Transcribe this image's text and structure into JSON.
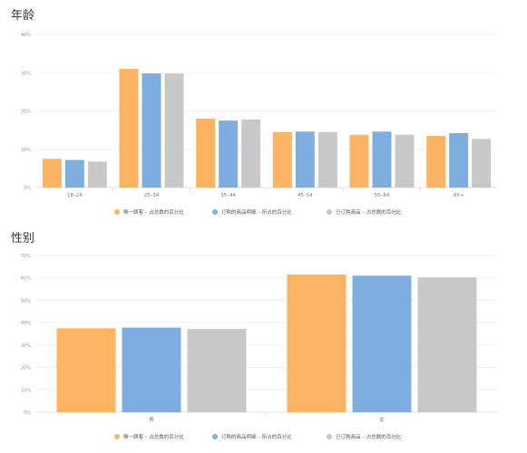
{
  "sections": {
    "age_title": "年龄",
    "gender_title": "性别"
  },
  "legend": [
    "唯一顾客 – 占总数的百分比",
    "订购的商品明细 – 所占的百分比",
    "已订购商品 – 占总数的百分比"
  ],
  "colors": [
    "#FDB462",
    "#7EADDF",
    "#C8C8C8"
  ],
  "chart_data": [
    {
      "type": "bar",
      "title": "年龄",
      "categories": [
        "18–24",
        "25–34",
        "35–44",
        "45–54",
        "55–64",
        "65+"
      ],
      "yticks": [
        "0%",
        "10%",
        "20%",
        "30%",
        "40%"
      ],
      "ylim": [
        0,
        40
      ],
      "grid": true,
      "legend_position": "bottom",
      "series": [
        {
          "name": "唯一顾客 – 占总数的百分比",
          "values": [
            7.5,
            31.0,
            18.0,
            14.5,
            13.8,
            13.5
          ]
        },
        {
          "name": "订购的商品明细 – 所占的百分比",
          "values": [
            7.2,
            29.8,
            17.5,
            14.6,
            14.6,
            14.2
          ]
        },
        {
          "name": "已订购商品 – 占总数的百分比",
          "values": [
            6.8,
            29.8,
            17.8,
            14.5,
            13.8,
            12.7
          ]
        }
      ]
    },
    {
      "type": "bar",
      "title": "性别",
      "categories": [
        "男",
        "女"
      ],
      "yticks": [
        "0%",
        "10%",
        "20%",
        "30%",
        "40%",
        "50%",
        "60%",
        "70%"
      ],
      "ylim": [
        0,
        70
      ],
      "grid": true,
      "legend_position": "bottom",
      "series": [
        {
          "name": "唯一顾客 – 占总数的百分比",
          "values": [
            37.5,
            61.5
          ]
        },
        {
          "name": "订购的商品明细 – 所占的百分比",
          "values": [
            37.8,
            61.0
          ]
        },
        {
          "name": "已订购商品 – 占总数的百分比",
          "values": [
            37.2,
            60.2
          ]
        }
      ]
    }
  ]
}
